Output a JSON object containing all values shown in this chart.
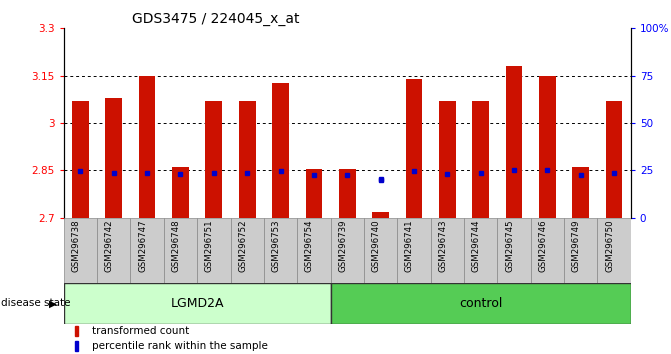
{
  "title": "GDS3475 / 224045_x_at",
  "samples": [
    "GSM296738",
    "GSM296742",
    "GSM296747",
    "GSM296748",
    "GSM296751",
    "GSM296752",
    "GSM296753",
    "GSM296754",
    "GSM296739",
    "GSM296740",
    "GSM296741",
    "GSM296743",
    "GSM296744",
    "GSM296745",
    "GSM296746",
    "GSM296749",
    "GSM296750"
  ],
  "groups": [
    "LGMD2A",
    "LGMD2A",
    "LGMD2A",
    "LGMD2A",
    "LGMD2A",
    "LGMD2A",
    "LGMD2A",
    "LGMD2A",
    "control",
    "control",
    "control",
    "control",
    "control",
    "control",
    "control",
    "control",
    "control"
  ],
  "red_values": [
    3.07,
    3.08,
    3.148,
    2.862,
    3.07,
    3.07,
    3.128,
    2.855,
    2.855,
    2.718,
    3.138,
    3.07,
    3.07,
    3.182,
    3.148,
    2.862,
    3.07
  ],
  "blue_values": [
    2.849,
    2.843,
    2.843,
    2.838,
    2.843,
    2.843,
    2.849,
    2.836,
    2.836,
    2.82,
    2.849,
    2.84,
    2.843,
    2.85,
    2.85,
    2.836,
    2.843
  ],
  "blue_dot_value": 2.822,
  "blue_dot_idx": 9,
  "ylim_left": [
    2.7,
    3.3
  ],
  "ylim_right": [
    0,
    100
  ],
  "yticks_left": [
    2.7,
    2.85,
    3.0,
    3.15,
    3.3
  ],
  "yticks_right": [
    0,
    25,
    50,
    75,
    100
  ],
  "ytick_labels_left": [
    "2.7",
    "2.85",
    "3",
    "3.15",
    "3.3"
  ],
  "ytick_labels_right": [
    "0",
    "25",
    "50",
    "75",
    "100%"
  ],
  "gridlines": [
    2.85,
    3.0,
    3.15
  ],
  "base_value": 2.7,
  "bar_color": "#cc1100",
  "blue_color": "#0000cc",
  "lgmd2a_color": "#ccffcc",
  "control_color": "#55cc55",
  "tick_bg_color": "#cccccc",
  "legend_red": "transformed count",
  "legend_blue": "percentile rank within the sample",
  "disease_label": "disease state",
  "n_lgmd": 8,
  "n_ctrl": 9
}
